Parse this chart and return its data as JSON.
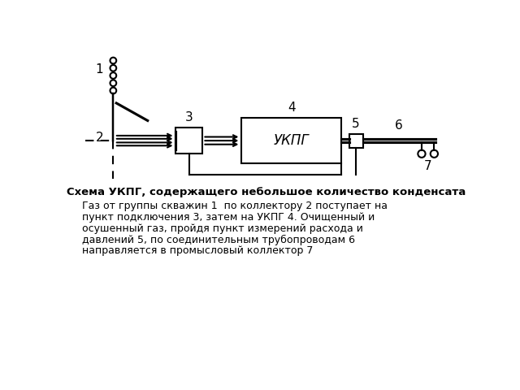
{
  "bg_color": "#ffffff",
  "diagram_title": "Схема УКПГ, содержащего небольшое количество конденсата",
  "diagram_text_lines": [
    "Газ от группы скважин 1  по коллектору 2 поступает на",
    "пункт подключения 3, затем на УКПГ 4. Очищенный и",
    "осушенный газ, пройдя пункт измерений расхода и",
    "давлений 5, по соединительным трубопроводам 6",
    "направляется в промысловый коллектор 7"
  ],
  "label_1": "1",
  "label_2": "2",
  "label_3": "3",
  "label_4": "4",
  "label_5": "5",
  "label_6": "6",
  "label_7": "7",
  "ukpg_label": "УКПГ",
  "line_color": "#000000",
  "lw": 1.5
}
